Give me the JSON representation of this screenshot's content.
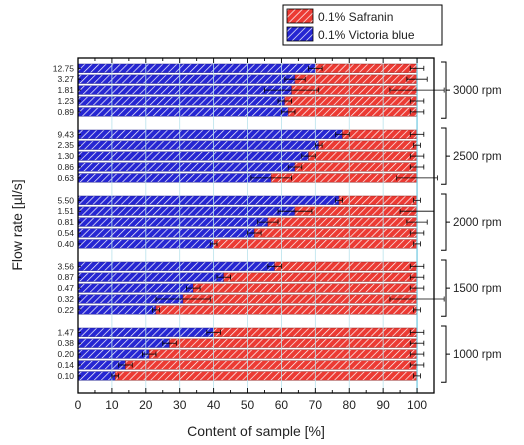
{
  "chart_data": {
    "type": "bar",
    "orientation": "horizontal",
    "stacked": true,
    "xlabel": "Content of sample [%]",
    "ylabel": "Flow rate [µl/s]",
    "xlim": [
      0,
      105
    ],
    "xticks": [
      0,
      10,
      20,
      30,
      40,
      50,
      60,
      70,
      80,
      90,
      100
    ],
    "legend": {
      "placement": "top-right",
      "entries": [
        {
          "name": "0.1% Safranin",
          "color": "#e8322e",
          "pattern": "hatched"
        },
        {
          "name": "0.1% Victoria blue",
          "color": "#2b2bd6",
          "pattern": "hatched"
        }
      ]
    },
    "groups": [
      {
        "label": "3000 rpm",
        "flow_rates": [
          "12.75",
          "3.27",
          "1.81",
          "1.23",
          "0.89"
        ],
        "victoria_blue": [
          70,
          64,
          63,
          61,
          62
        ],
        "safranin": [
          30,
          36,
          37,
          39,
          38
        ],
        "error": [
          2,
          3,
          8,
          2,
          2
        ]
      },
      {
        "label": "2500 rpm",
        "flow_rates": [
          "9.43",
          "2.35",
          "1.30",
          "0.86",
          "0.63"
        ],
        "victoria_blue": [
          78,
          71,
          68,
          64,
          57
        ],
        "safranin": [
          22,
          29,
          32,
          36,
          43
        ],
        "error": [
          2,
          1,
          2,
          2,
          6
        ]
      },
      {
        "label": "2000 rpm",
        "flow_rates": [
          "5.50",
          "1.51",
          "0.81",
          "0.54",
          "0.40"
        ],
        "victoria_blue": [
          77,
          64,
          56,
          52,
          40
        ],
        "safranin": [
          23,
          36,
          44,
          48,
          60
        ],
        "error": [
          1,
          5,
          3,
          2,
          1
        ]
      },
      {
        "label": "1500 rpm",
        "flow_rates": [
          "3.56",
          "0.87",
          "0.47",
          "0.32",
          "0.22"
        ],
        "victoria_blue": [
          58,
          43,
          34,
          31,
          23
        ],
        "safranin": [
          42,
          57,
          66,
          69,
          77
        ],
        "error": [
          2,
          2,
          2,
          8,
          1
        ]
      },
      {
        "label": "1000 rpm",
        "flow_rates": [
          "1.47",
          "0.38",
          "0.20",
          "0.14",
          "0.10"
        ],
        "victoria_blue": [
          40,
          27,
          21,
          14,
          11
        ],
        "safranin": [
          60,
          73,
          79,
          86,
          89
        ],
        "error": [
          2,
          2,
          2,
          2,
          1
        ]
      }
    ]
  }
}
